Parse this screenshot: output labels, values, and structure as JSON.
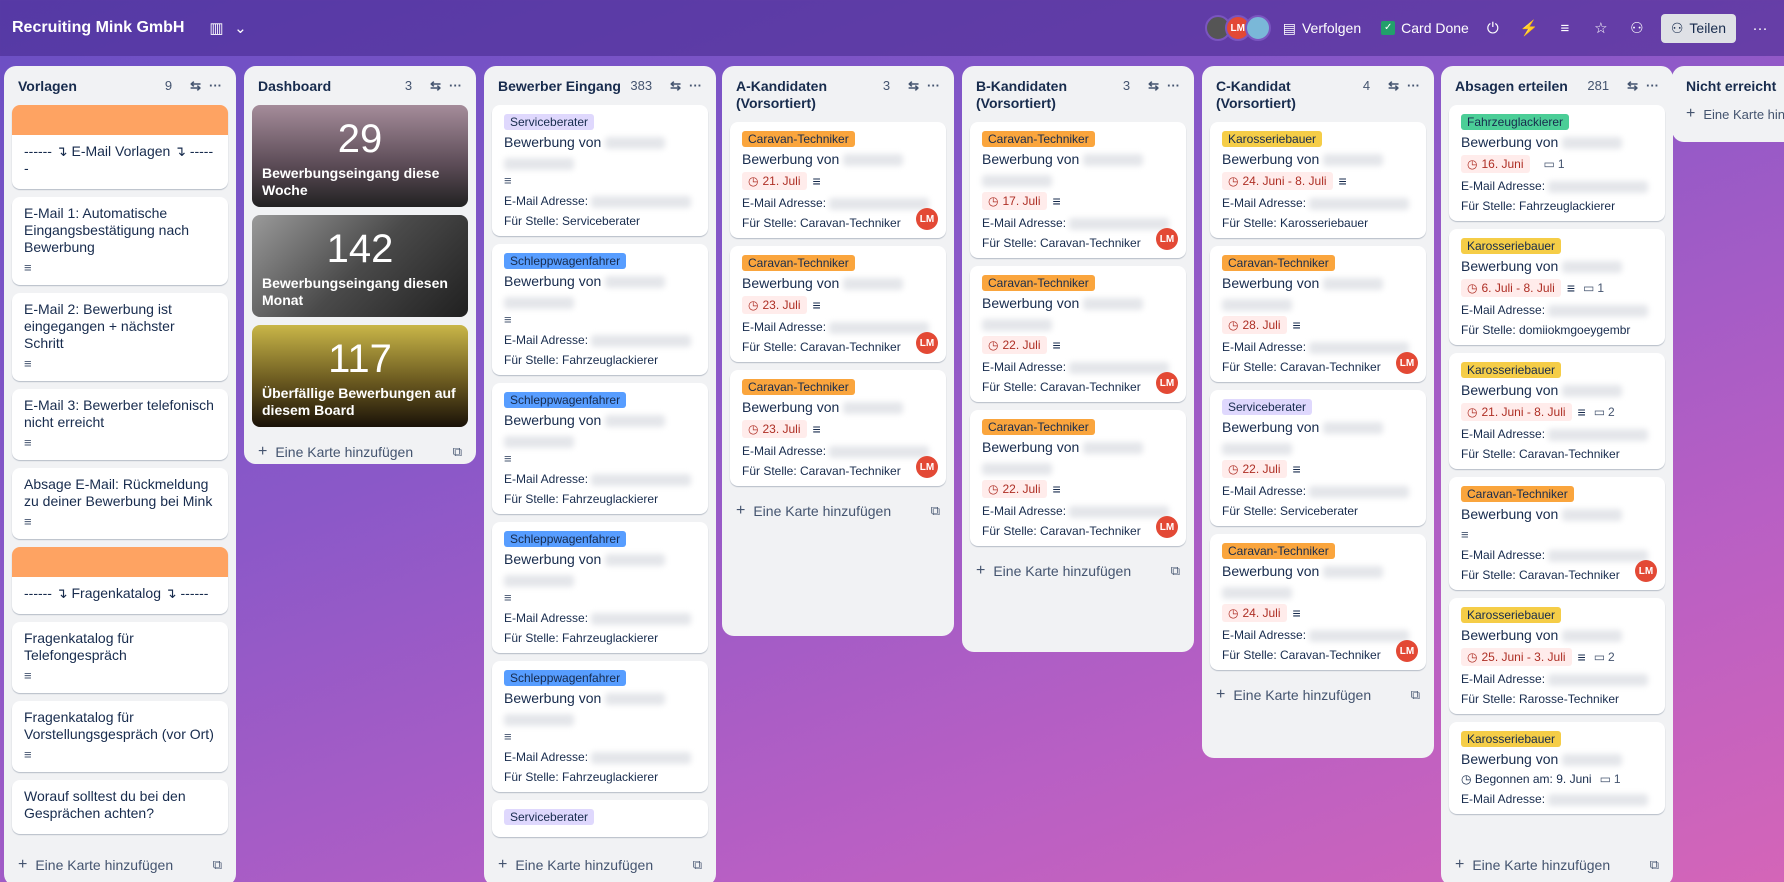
{
  "topbar": {
    "title": "Recruiting Mink GmbH",
    "follow": "Verfolgen",
    "card_done": "Card Done",
    "share": "Teilen",
    "avatar_initials": "LM"
  },
  "add_card": "Eine Karte hinzufügen",
  "lists": [
    {
      "title": "Vorlagen",
      "count": "9",
      "cards": [
        "------ ↴ E-Mail Vorlagen ↴ ------",
        "E-Mail 1: Automatische Eingangsbestätigung nach Bewerbung",
        "E-Mail 2: Bewerbung ist eingegangen + nächster Schritt",
        "E-Mail 3: Bewerber telefonisch nicht erreicht",
        "Absage E-Mail: Rückmeldung zu deiner Bewerbung bei Mink",
        "------ ↴ Fragenkatalog ↴ ------",
        "Fragenkatalog für Telefongespräch",
        "Fragenkatalog für Vorstellungsgespräch (vor Ort)",
        "Worauf solltest du bei den Gesprächen achten?"
      ]
    },
    {
      "title": "Dashboard",
      "count": "3",
      "dash": [
        {
          "num": "29",
          "label": "Bewerbungseingang diese Woche"
        },
        {
          "num": "142",
          "label": "Bewerbungseingang diesen Monat"
        },
        {
          "num": "117",
          "label": "Überfällige Bewerbungen auf diesem Board"
        }
      ]
    },
    {
      "title": "Bewerber Eingang",
      "count": "383",
      "cards": [
        {
          "label": "Serviceberater",
          "stelle": "Für Stelle: Serviceberater"
        },
        {
          "label": "Schleppwagenfahrer",
          "stelle": "Für Stelle: Fahrzeuglackierer"
        },
        {
          "label": "Schleppwagenfahrer",
          "stelle": "Für Stelle: Fahrzeuglackierer"
        },
        {
          "label": "Schleppwagenfahrer",
          "stelle": "Für Stelle: Fahrzeuglackierer"
        },
        {
          "label": "Schleppwagenfahrer",
          "stelle": "Für Stelle: Fahrzeuglackierer"
        },
        {
          "label": "Serviceberater"
        }
      ]
    },
    {
      "title": "A-Kandidaten (Vorsortiert)",
      "count": "3",
      "cards": [
        {
          "label": "Caravan-Techniker",
          "due": "21. Juli",
          "stelle": "Für Stelle: Caravan-Techniker"
        },
        {
          "label": "Caravan-Techniker",
          "due": "23. Juli",
          "stelle": "Für Stelle: Caravan-Techniker"
        },
        {
          "label": "Caravan-Techniker",
          "due": "23. Juli",
          "stelle": "Für Stelle: Caravan-Techniker"
        }
      ]
    },
    {
      "title": "B-Kandidaten (Vorsortiert)",
      "count": "3",
      "cards": [
        {
          "label": "Caravan-Techniker",
          "due": "17. Juli",
          "stelle": "Für Stelle: Caravan-Techniker"
        },
        {
          "label": "Caravan-Techniker",
          "due": "22. Juli",
          "stelle": "Für Stelle: Caravan-Techniker"
        },
        {
          "label": "Caravan-Techniker",
          "due": "22. Juli",
          "stelle": "Für Stelle: Caravan-Techniker"
        }
      ]
    },
    {
      "title": "C-Kandidat (Vorsortiert)",
      "count": "4",
      "cards": [
        {
          "label": "Karosseriebauer",
          "due": "24. Juni - 8. Juli",
          "stelle": "Für Stelle: Karosseriebauer"
        },
        {
          "label": "Caravan-Techniker",
          "due": "28. Juli",
          "stelle": "Für Stelle: Caravan-Techniker"
        },
        {
          "label": "Serviceberater",
          "due": "22. Juli",
          "stelle": "Für Stelle: Serviceberater"
        },
        {
          "label": "Caravan-Techniker",
          "due": "24. Juli",
          "stelle": "Für Stelle: Caravan-Techniker"
        }
      ]
    },
    {
      "title": "Absagen erteilen",
      "count": "281",
      "cards": [
        {
          "label": "Fahrzeuglackierer",
          "due": "16. Juni",
          "comments": "1",
          "stelle": "Für Stelle: Fahrzeuglackierer"
        },
        {
          "label": "Karosseriebauer",
          "due": "6. Juli - 8. Juli",
          "comments": "1",
          "stelle": "Für Stelle: domiiokmgoeygembr"
        },
        {
          "label": "Karosseriebauer",
          "due": "21. Juni - 8. Juli",
          "comments": "2",
          "stelle": "Für Stelle: Caravan-Techniker"
        },
        {
          "label": "Caravan-Techniker",
          "stelle": "Für Stelle: Caravan-Techniker"
        },
        {
          "label": "Karosseriebauer",
          "due": "25. Juni - 3. Juli",
          "comments": "2",
          "stelle": "Für Stelle: Rarosse-Techniker"
        },
        {
          "label": "Karosseriebauer",
          "started": "Begonnen am: 9. Juni",
          "comments": "1"
        }
      ]
    },
    {
      "title": "Nicht erreicht",
      "add": "Eine Karte hin"
    }
  ],
  "bewerbung_von": "Bewerbung von",
  "email_label": "E-Mail Adresse:",
  "colors": {
    "purple": "#dfd8fd",
    "blue": "#579dff",
    "orange": "#faa53d",
    "yellow": "#f5cd47",
    "green": "#4bce97",
    "lm_red": "#e34935"
  }
}
